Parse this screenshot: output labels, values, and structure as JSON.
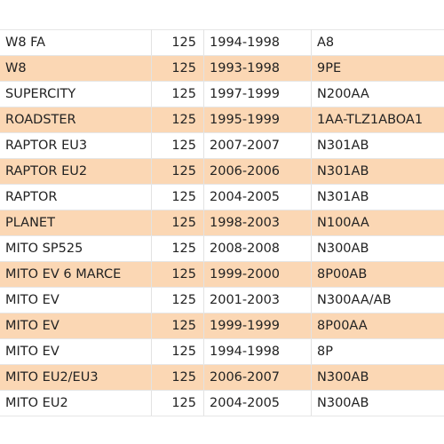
{
  "rows": [
    {
      "model": "W8 FA",
      "cc": "125",
      "years": "1994-1998",
      "code": "A8"
    },
    {
      "model": "W8",
      "cc": "125",
      "years": "1993-1998",
      "code": "9PE"
    },
    {
      "model": "SUPERCITY",
      "cc": "125",
      "years": "1997-1999",
      "code": "N200AA"
    },
    {
      "model": "ROADSTER",
      "cc": "125",
      "years": "1995-1999",
      "code": "1AA-TLZ1ABOA1"
    },
    {
      "model": "RAPTOR EU3",
      "cc": "125",
      "years": "2007-2007",
      "code": "N301AB"
    },
    {
      "model": "RAPTOR EU2",
      "cc": "125",
      "years": "2006-2006",
      "code": "N301AB"
    },
    {
      "model": "RAPTOR",
      "cc": "125",
      "years": "2004-2005",
      "code": "N301AB"
    },
    {
      "model": "PLANET",
      "cc": "125",
      "years": "1998-2003",
      "code": "N100AA"
    },
    {
      "model": "MITO SP525",
      "cc": "125",
      "years": "2008-2008",
      "code": "N300AB"
    },
    {
      "model": "MITO EV 6 MARCE",
      "cc": "125",
      "years": "1999-2000",
      "code": "8P00AB"
    },
    {
      "model": "MITO EV",
      "cc": "125",
      "years": "2001-2003",
      "code": "N300AA/AB"
    },
    {
      "model": "MITO EV",
      "cc": "125",
      "years": "1999-1999",
      "code": "8P00AA"
    },
    {
      "model": "MITO EV",
      "cc": "125",
      "years": "1994-1998",
      "code": "8P"
    },
    {
      "model": "MITO EU2/EU3",
      "cc": "125",
      "years": "2006-2007",
      "code": "N300AB"
    },
    {
      "model": "MITO EU2",
      "cc": "125",
      "years": "2004-2005",
      "code": "N300AB"
    }
  ],
  "colors": {
    "alt_row": "#fbd7b4",
    "text": "#222222"
  }
}
